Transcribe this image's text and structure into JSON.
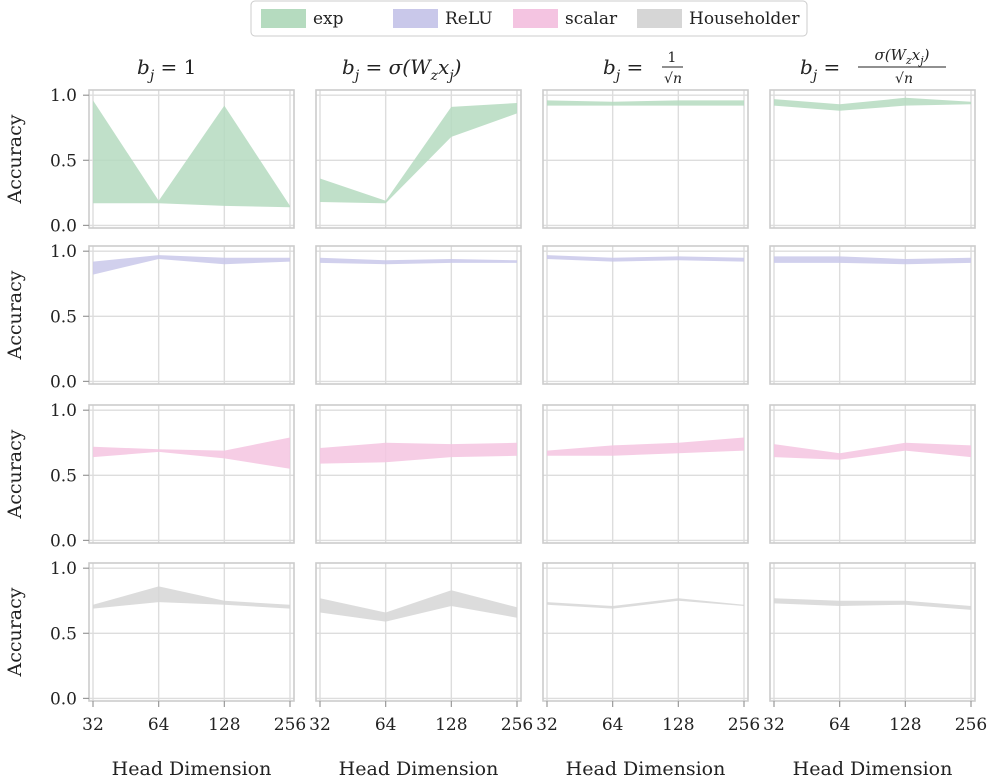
{
  "chart_data": {
    "type": "area",
    "legend": {
      "placement": "top-center",
      "entries": [
        {
          "label": "exp",
          "color": "#b5dbbf"
        },
        {
          "label": "ReLU",
          "color": "#c9c8ea"
        },
        {
          "label": "scalar",
          "color": "#f4c4e1"
        },
        {
          "label": "Householder",
          "color": "#d6d6d6"
        }
      ]
    },
    "column_titles": [
      {
        "lhs": "b",
        "sub": "j",
        "rhs": "= 1"
      },
      {
        "lhs": "b",
        "sub": "j",
        "rhs": "= σ(W",
        "sub2": "z",
        "mid": "x",
        "sub3": "j",
        "end": ")"
      },
      {
        "lhs": "b",
        "sub": "j",
        "rhs": "=",
        "num": "1",
        "den": "√n"
      },
      {
        "lhs": "b",
        "sub": "j",
        "rhs": "=",
        "num": "σ(W",
        "numsub": "z",
        "numx": "x",
        "numsub2": "j",
        "numend": ")",
        "den": "√n"
      }
    ],
    "xlabel": "Head Dimension",
    "ylabel": "Accuracy",
    "x": [
      32,
      64,
      128,
      256
    ],
    "x_tick_labels": [
      "32",
      "64",
      "128",
      "256"
    ],
    "y_ticks": [
      0.0,
      0.5,
      1.0
    ],
    "y_tick_labels": [
      "0.0",
      "0.5",
      "1.0"
    ],
    "ylim": [
      -0.02,
      1.04
    ],
    "grid": true,
    "rows": [
      {
        "series": "exp",
        "color": "#b5dbbf",
        "panels": [
          {
            "lower": [
              0.17,
              0.17,
              0.15,
              0.14
            ],
            "upper": [
              0.96,
              0.19,
              0.92,
              0.15
            ]
          },
          {
            "lower": [
              0.18,
              0.17,
              0.68,
              0.86
            ],
            "upper": [
              0.36,
              0.19,
              0.91,
              0.94
            ]
          },
          {
            "lower": [
              0.92,
              0.92,
              0.92,
              0.92
            ],
            "upper": [
              0.96,
              0.95,
              0.96,
              0.96
            ]
          },
          {
            "lower": [
              0.92,
              0.88,
              0.92,
              0.93
            ],
            "upper": [
              0.97,
              0.93,
              0.98,
              0.95
            ]
          }
        ]
      },
      {
        "series": "ReLU",
        "color": "#c9c8ea",
        "panels": [
          {
            "lower": [
              0.82,
              0.94,
              0.9,
              0.92
            ],
            "upper": [
              0.92,
              0.97,
              0.95,
              0.95
            ]
          },
          {
            "lower": [
              0.91,
              0.9,
              0.91,
              0.91
            ],
            "upper": [
              0.95,
              0.93,
              0.94,
              0.93
            ]
          },
          {
            "lower": [
              0.94,
              0.92,
              0.93,
              0.92
            ],
            "upper": [
              0.97,
              0.95,
              0.96,
              0.95
            ]
          },
          {
            "lower": [
              0.91,
              0.91,
              0.9,
              0.91
            ],
            "upper": [
              0.96,
              0.96,
              0.94,
              0.95
            ]
          }
        ]
      },
      {
        "series": "scalar",
        "color": "#f4c4e1",
        "panels": [
          {
            "lower": [
              0.64,
              0.68,
              0.63,
              0.55
            ],
            "upper": [
              0.72,
              0.7,
              0.69,
              0.79
            ]
          },
          {
            "lower": [
              0.59,
              0.6,
              0.64,
              0.65
            ],
            "upper": [
              0.71,
              0.75,
              0.74,
              0.75
            ]
          },
          {
            "lower": [
              0.65,
              0.65,
              0.67,
              0.69
            ],
            "upper": [
              0.69,
              0.73,
              0.75,
              0.79
            ]
          },
          {
            "lower": [
              0.64,
              0.62,
              0.69,
              0.64
            ],
            "upper": [
              0.74,
              0.67,
              0.75,
              0.73
            ]
          }
        ]
      },
      {
        "series": "Householder",
        "color": "#d6d6d6",
        "panels": [
          {
            "lower": [
              0.69,
              0.74,
              0.72,
              0.69
            ],
            "upper": [
              0.72,
              0.86,
              0.75,
              0.72
            ]
          },
          {
            "lower": [
              0.66,
              0.59,
              0.71,
              0.62
            ],
            "upper": [
              0.77,
              0.66,
              0.83,
              0.7
            ]
          },
          {
            "lower": [
              0.72,
              0.69,
              0.75,
              0.71
            ],
            "upper": [
              0.74,
              0.71,
              0.77,
              0.72
            ]
          },
          {
            "lower": [
              0.73,
              0.71,
              0.72,
              0.68
            ],
            "upper": [
              0.77,
              0.75,
              0.75,
              0.71
            ]
          }
        ]
      }
    ]
  }
}
